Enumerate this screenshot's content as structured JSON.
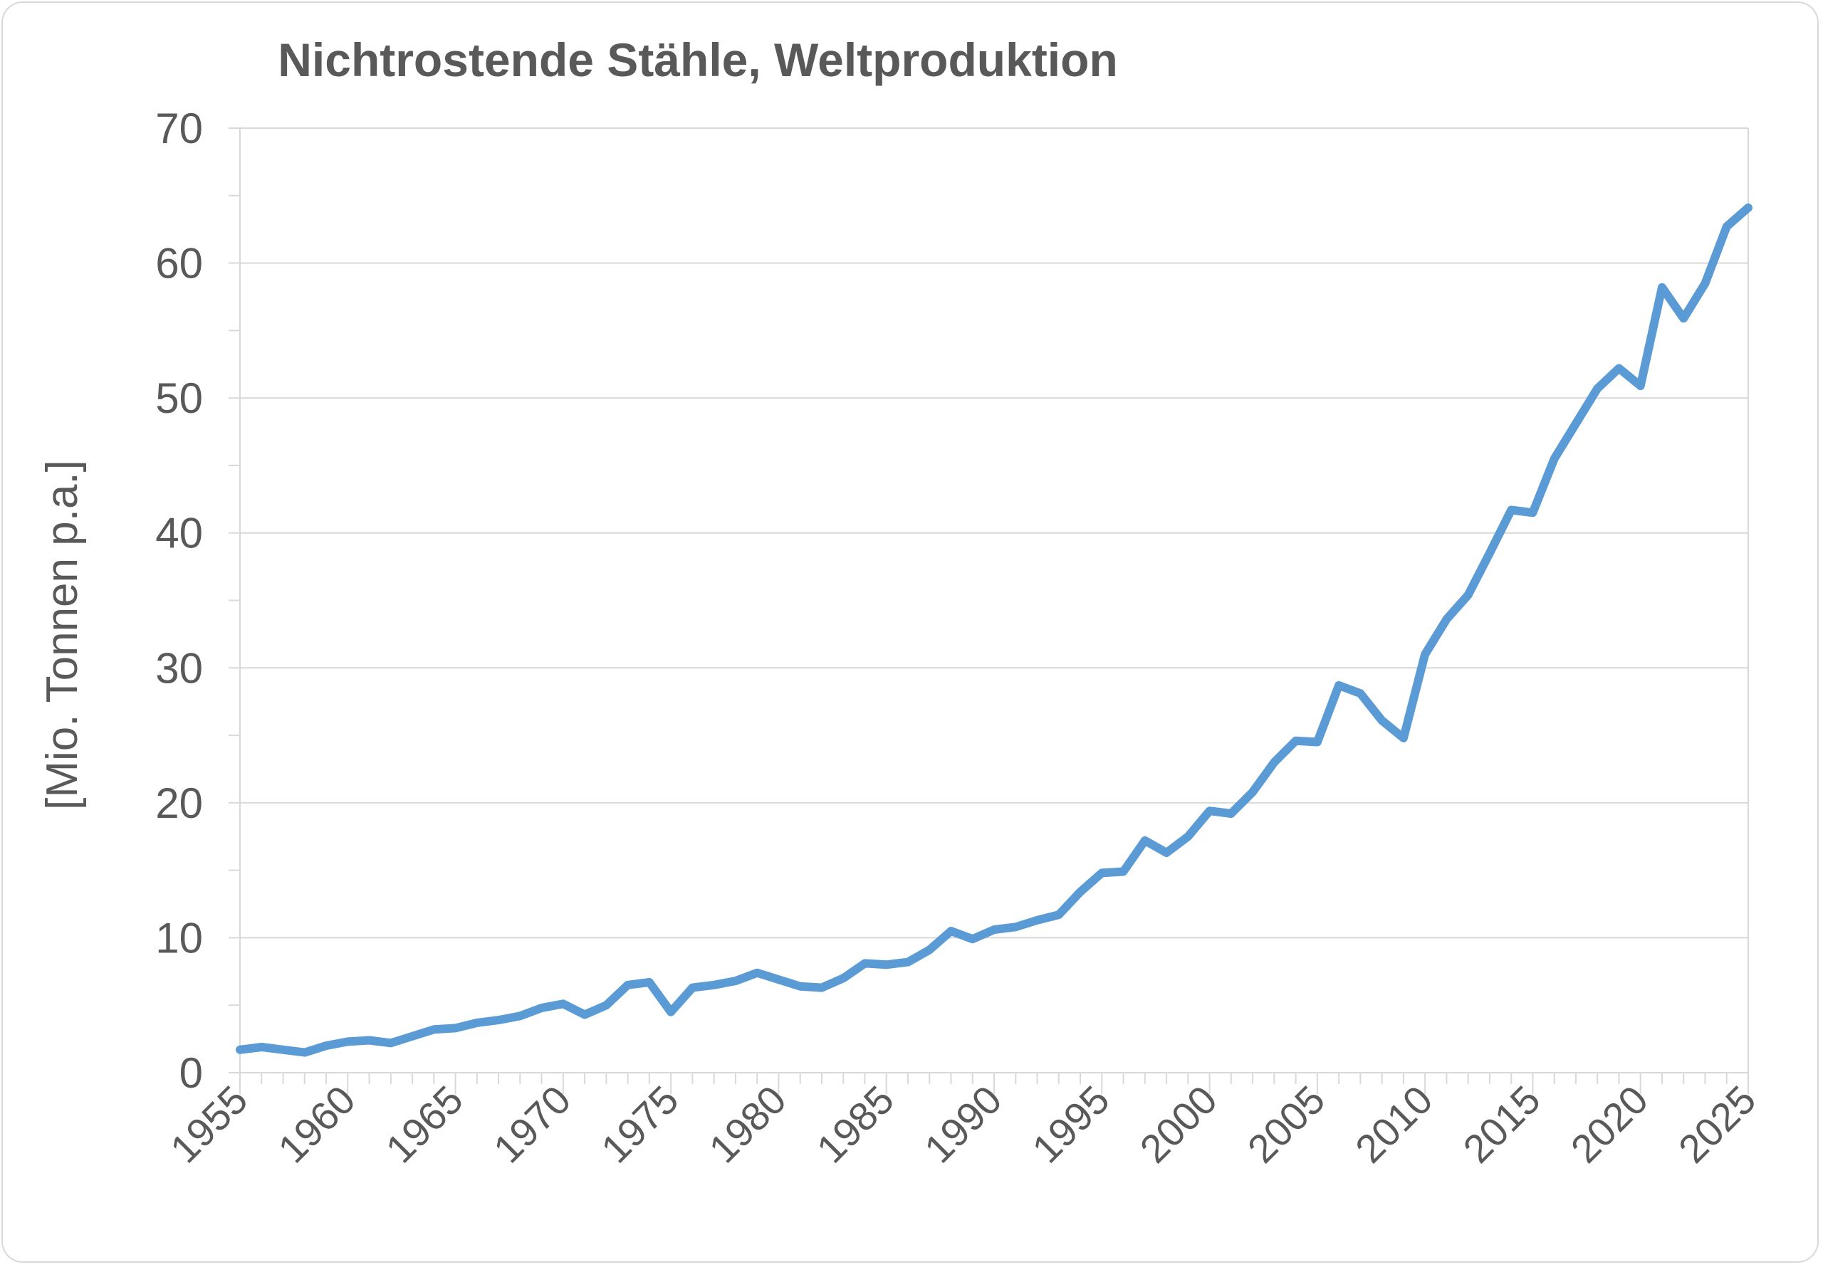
{
  "chart_data": {
    "type": "line",
    "title": "Nichtrostende Stähle, Weltproduktion",
    "xlabel": "",
    "ylabel": "[Mio. Tonnen p.a.]",
    "xlim": [
      1955,
      2025
    ],
    "ylim": [
      0,
      70
    ],
    "y_ticks": [
      0,
      10,
      20,
      30,
      40,
      50,
      60,
      70
    ],
    "x_ticks": [
      1955,
      1960,
      1965,
      1970,
      1975,
      1980,
      1985,
      1990,
      1995,
      2000,
      2005,
      2010,
      2015,
      2020,
      2025
    ],
    "y_tick_labels": [
      "0",
      "10",
      "20",
      "30",
      "40",
      "50",
      "60",
      "70"
    ],
    "x_tick_labels": [
      "1955",
      "1960",
      "1965",
      "1970",
      "1975",
      "1980",
      "1985",
      "1990",
      "1995",
      "2000",
      "2005",
      "2010",
      "2015",
      "2020",
      "2025"
    ],
    "grid": "horizontal",
    "line_color": "#5b9bd5",
    "x": [
      1955,
      1956,
      1957,
      1958,
      1959,
      1960,
      1961,
      1962,
      1963,
      1964,
      1965,
      1966,
      1967,
      1968,
      1969,
      1970,
      1971,
      1972,
      1973,
      1974,
      1975,
      1976,
      1977,
      1978,
      1979,
      1980,
      1981,
      1982,
      1983,
      1984,
      1985,
      1986,
      1987,
      1988,
      1989,
      1990,
      1991,
      1992,
      1993,
      1994,
      1995,
      1996,
      1997,
      1998,
      1999,
      2000,
      2001,
      2002,
      2003,
      2004,
      2005,
      2006,
      2007,
      2008,
      2009,
      2010,
      2011,
      2012,
      2013,
      2014,
      2015,
      2016,
      2017,
      2018,
      2019,
      2020,
      2021,
      2022,
      2023,
      2024,
      2025
    ],
    "series": [
      {
        "values": [
          1.7,
          1.9,
          1.7,
          1.5,
          2.0,
          2.3,
          2.4,
          2.2,
          2.7,
          3.2,
          3.3,
          3.7,
          3.9,
          4.2,
          4.8,
          5.1,
          4.3,
          5.0,
          6.5,
          6.7,
          4.5,
          6.3,
          6.5,
          6.8,
          7.4,
          6.9,
          6.4,
          6.3,
          7.0,
          8.1,
          8.0,
          8.2,
          9.1,
          10.5,
          9.9,
          10.6,
          10.8,
          11.3,
          11.7,
          13.4,
          14.8,
          14.9,
          17.2,
          16.3,
          17.5,
          19.4,
          19.2,
          20.8,
          23.0,
          24.6,
          24.5,
          28.7,
          28.1,
          26.1,
          24.8,
          31.0,
          33.6,
          35.4,
          38.5,
          41.7,
          41.5,
          45.5,
          48.1,
          50.7,
          52.2,
          50.9,
          58.2,
          55.9,
          58.5,
          62.7,
          64.1
        ]
      }
    ]
  }
}
